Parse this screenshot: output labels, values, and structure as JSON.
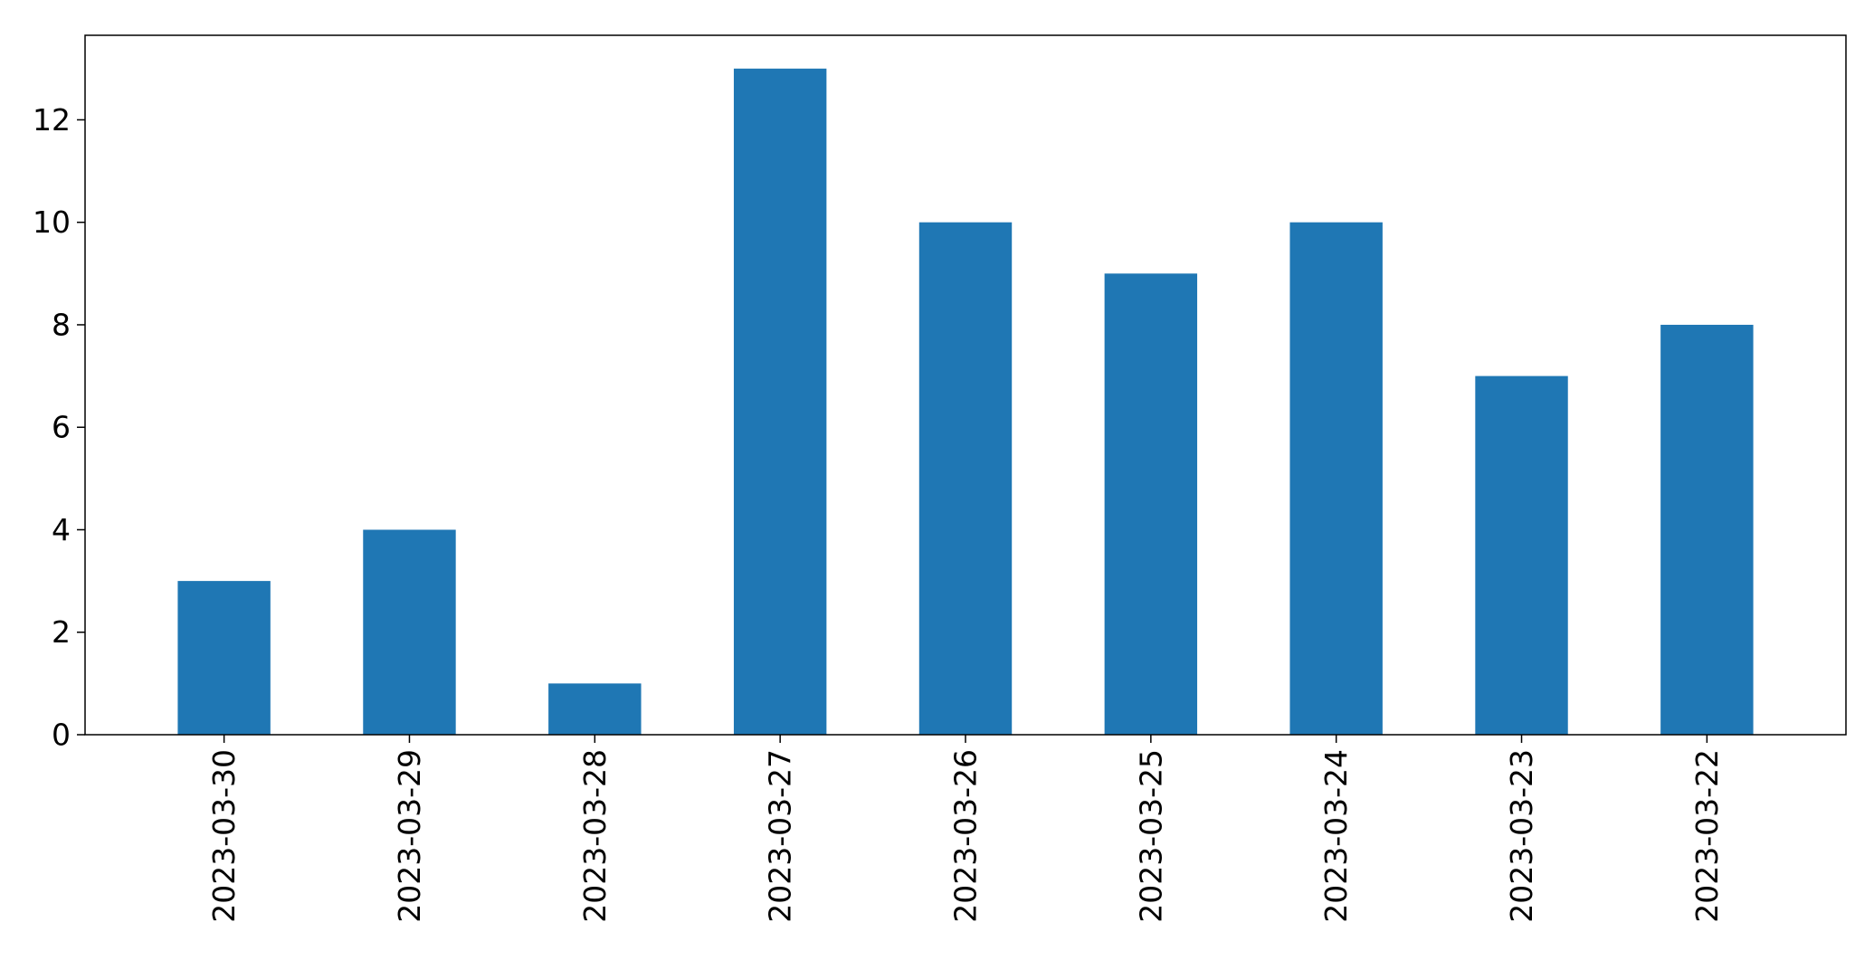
{
  "chart_data": {
    "type": "bar",
    "categories": [
      "2023-03-30",
      "2023-03-29",
      "2023-03-28",
      "2023-03-27",
      "2023-03-26",
      "2023-03-25",
      "2023-03-24",
      "2023-03-23",
      "2023-03-22"
    ],
    "values": [
      3,
      4,
      1,
      13,
      10,
      9,
      10,
      7,
      8
    ],
    "title": "",
    "xlabel": "",
    "ylabel": "",
    "ylim": [
      0,
      13.65
    ],
    "yticks": [
      0,
      2,
      4,
      6,
      8,
      10,
      12
    ],
    "grid": false,
    "legend": false,
    "bar_color": "#1f77b4",
    "axis_color": "#000000",
    "x_tick_rotation": "vertical"
  }
}
